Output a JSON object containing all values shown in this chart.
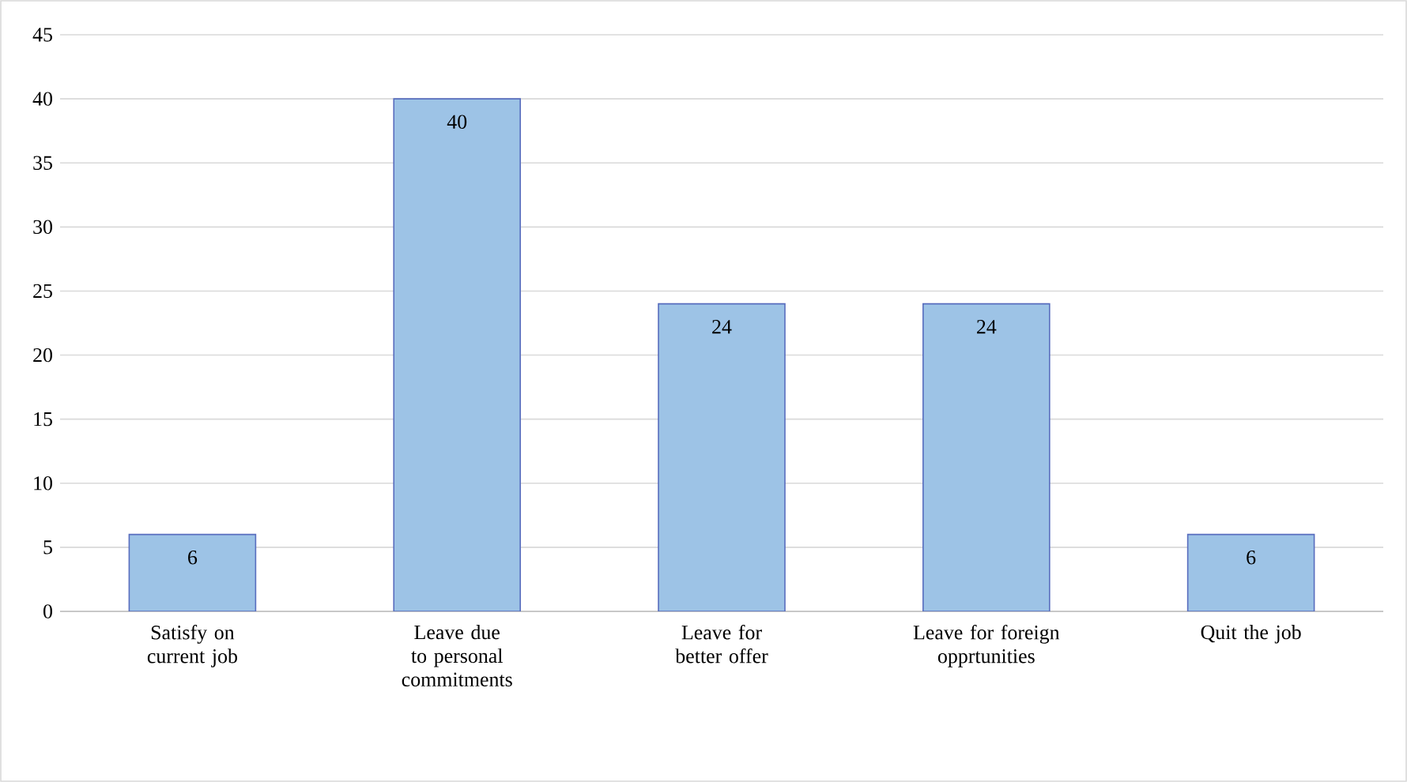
{
  "chart_data": {
    "type": "bar",
    "categories": [
      "Satisfy on current job",
      "Leave due to personal commitments",
      "Leave for better offer",
      "Leave for foreign opprtunities",
      "Quit the job"
    ],
    "values": [
      6,
      40,
      24,
      24,
      6
    ],
    "color": "#9dc3e6",
    "ylim": [
      0,
      45
    ],
    "yticks": [
      0,
      5,
      10,
      15,
      20,
      25,
      30,
      35,
      40,
      45
    ],
    "grid": "y",
    "data_labels": true
  }
}
